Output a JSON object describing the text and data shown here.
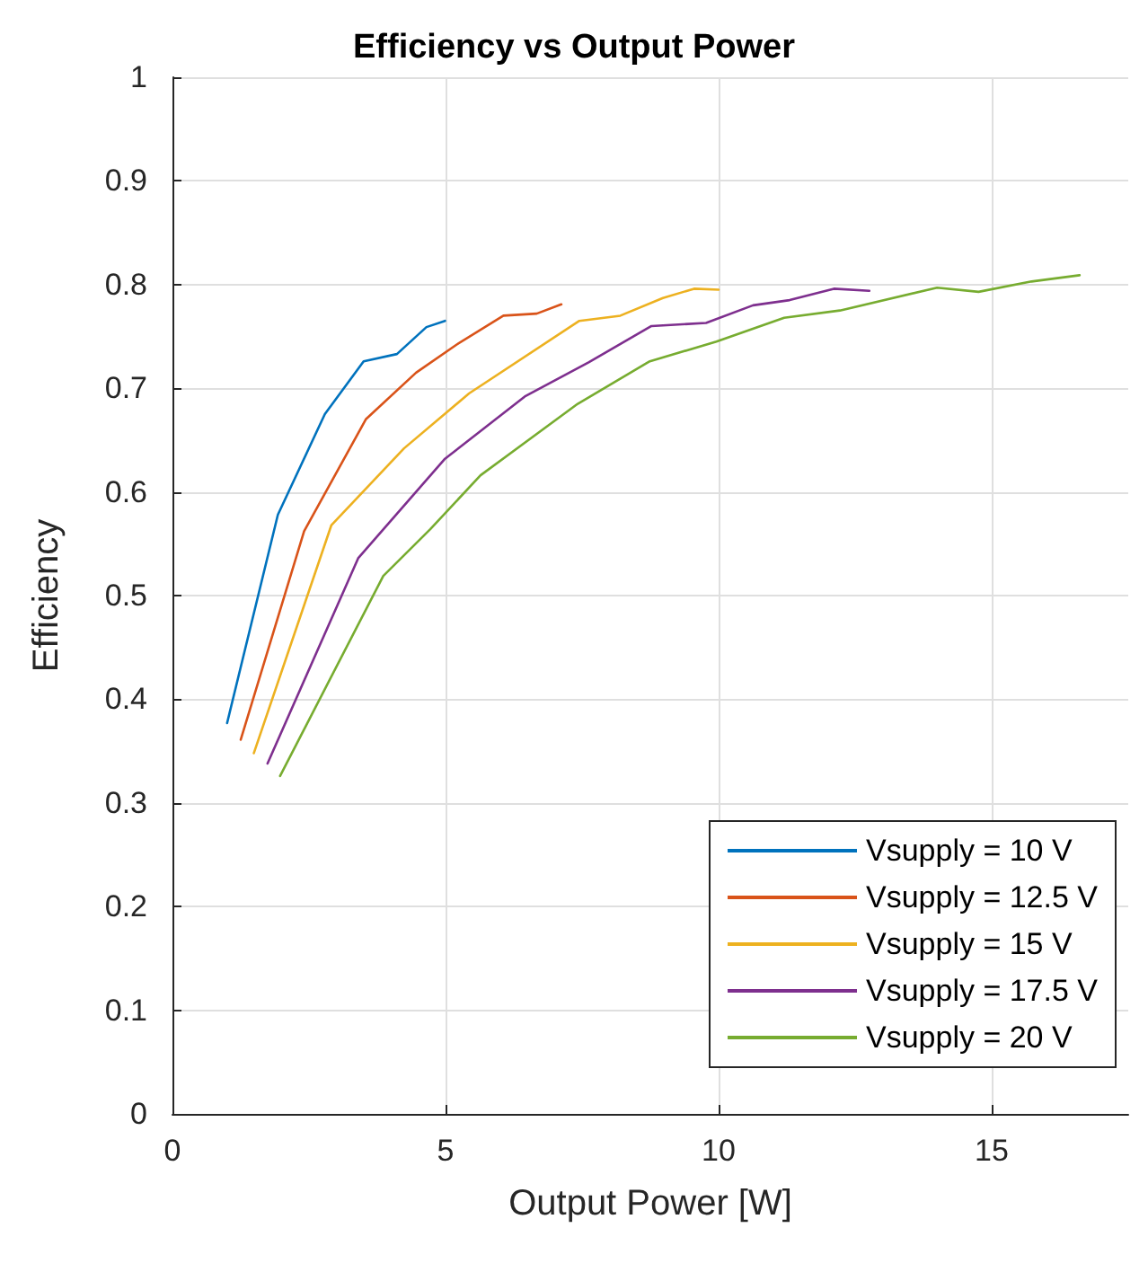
{
  "chart_data": {
    "type": "line",
    "title": "Efficiency vs Output Power",
    "xlabel": "Output Power [W]",
    "ylabel": "Efficiency",
    "series": [
      {
        "name": "Vsupply = 10 V",
        "color": "#0072bd",
        "x": [
          1.0,
          1.93,
          2.79,
          3.5,
          4.11,
          4.65,
          4.99
        ],
        "values": [
          0.377,
          0.578,
          0.675,
          0.726,
          0.733,
          0.759,
          0.765
        ]
      },
      {
        "name": "Vsupply = 12.5 V",
        "color": "#d95319",
        "x": [
          1.25,
          2.41,
          3.54,
          4.46,
          5.2,
          6.06,
          6.67,
          7.12
        ],
        "values": [
          0.361,
          0.562,
          0.67,
          0.715,
          0.742,
          0.77,
          0.772,
          0.781
        ]
      },
      {
        "name": "Vsupply = 15 V",
        "color": "#edb120",
        "x": [
          1.49,
          2.91,
          4.24,
          5.43,
          7.45,
          8.2,
          8.98,
          9.55,
          10.0
        ],
        "values": [
          0.348,
          0.568,
          0.642,
          0.695,
          0.765,
          0.77,
          0.787,
          0.796,
          0.795
        ]
      },
      {
        "name": "Vsupply = 17.5 V",
        "color": "#7e2f8e",
        "x": [
          1.74,
          3.4,
          4.99,
          6.45,
          7.62,
          8.77,
          9.77,
          10.63,
          11.3,
          12.11,
          12.76
        ],
        "values": [
          0.338,
          0.536,
          0.632,
          0.692,
          0.725,
          0.76,
          0.763,
          0.78,
          0.785,
          0.796,
          0.794
        ]
      },
      {
        "name": "Vsupply = 20 V",
        "color": "#77ac30",
        "x": [
          1.97,
          3.86,
          4.72,
          5.64,
          7.42,
          8.74,
          9.96,
          11.2,
          12.22,
          14.0,
          14.76,
          15.73,
          16.61
        ],
        "values": [
          0.326,
          0.519,
          0.564,
          0.616,
          0.685,
          0.726,
          0.745,
          0.768,
          0.775,
          0.797,
          0.793,
          0.803,
          0.809
        ]
      }
    ],
    "xlim": [
      0,
      17.5
    ],
    "xticks": [
      0,
      5,
      10,
      15
    ],
    "ylim": [
      0,
      1
    ],
    "yticks": [
      0,
      0.1,
      0.2,
      0.3,
      0.4,
      0.5,
      0.6,
      0.7,
      0.8,
      0.9,
      1
    ],
    "grid": true,
    "legend": "bottom right",
    "marker": "none",
    "line_style": "solid"
  }
}
